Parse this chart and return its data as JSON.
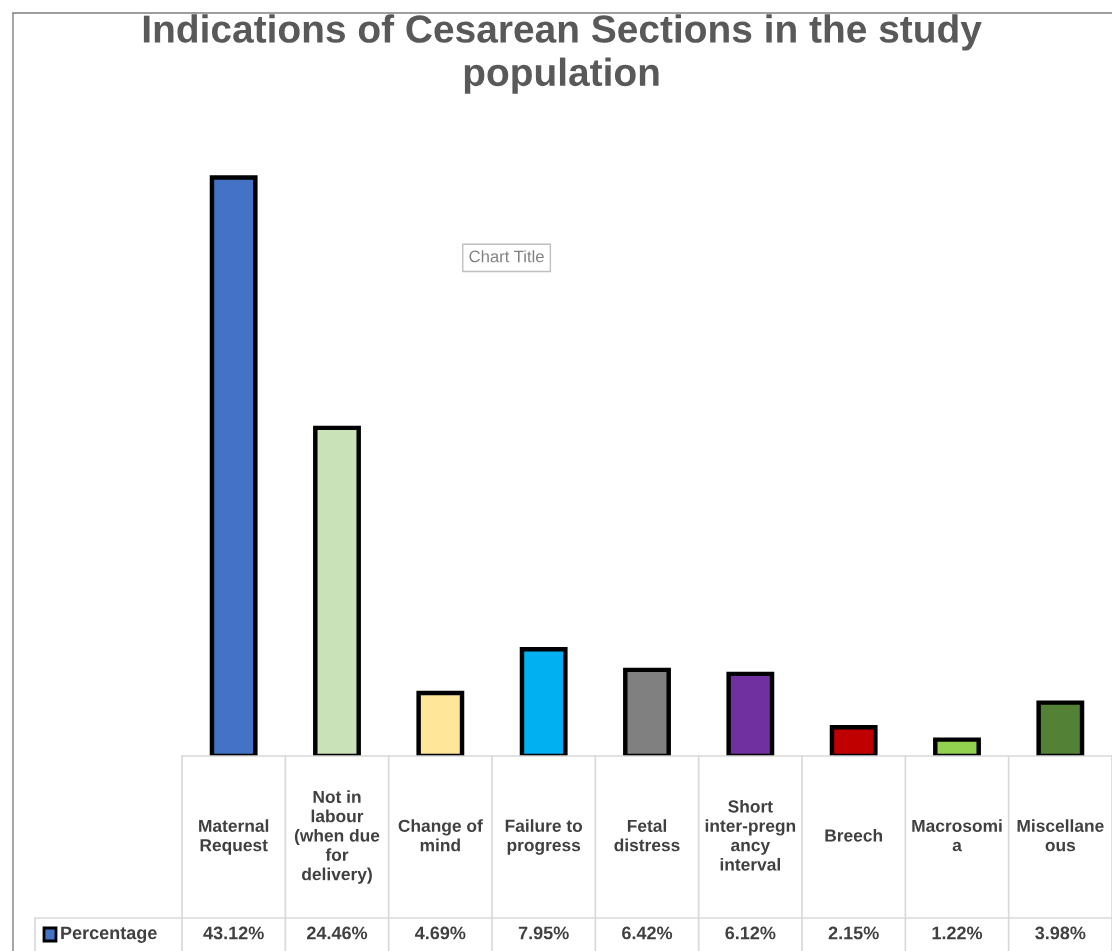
{
  "chart_data": {
    "type": "bar",
    "title": "Indications of Cesarean Sections in the study population",
    "categories": [
      "Maternal Request",
      "Not in labour (when due for delivery)",
      "Change of mind",
      "Failure to progress",
      "Fetal distress",
      "Short inter-pregnancy interval",
      "Breech",
      "Macrosomia",
      "Miscellaneous"
    ],
    "series": [
      {
        "name": "Percentage",
        "color": "#4472c4",
        "colors": [
          "#4472c4",
          "#c9e2b8",
          "#ffe699",
          "#00b0f0",
          "#808080",
          "#7030a0",
          "#c00000",
          "#92d050",
          "#538135"
        ],
        "values": [
          43.12,
          24.46,
          4.69,
          7.95,
          6.42,
          6.12,
          2.15,
          1.22,
          3.98
        ],
        "value_labels": [
          "43.12%",
          "24.46%",
          "4.69%",
          "7.95%",
          "6.42%",
          "6.12%",
          "2.15%",
          "1.22%",
          "3.98%"
        ]
      }
    ],
    "annotations": [
      "Chart Title"
    ]
  }
}
